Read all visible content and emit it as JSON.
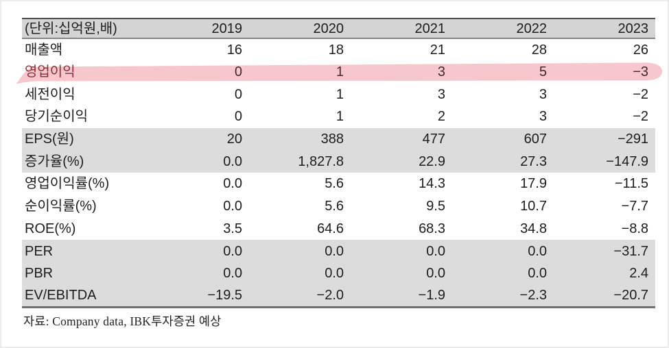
{
  "page": {
    "footer": "자료: Company data, IBK투자증권 예상"
  },
  "table": {
    "unit_label": "(단위:십억원,배)",
    "columns": [
      "2019",
      "2020",
      "2021",
      "2022",
      "2023"
    ],
    "rows": [
      {
        "label": "매출액",
        "values": [
          "16",
          "18",
          "21",
          "28",
          "26"
        ],
        "shaded": false,
        "highlighted": false
      },
      {
        "label": "영업이익",
        "values": [
          "0",
          "1",
          "3",
          "5",
          "−3"
        ],
        "shaded": false,
        "highlighted": true
      },
      {
        "label": "세전이익",
        "values": [
          "0",
          "1",
          "3",
          "3",
          "−2"
        ],
        "shaded": false,
        "highlighted": false
      },
      {
        "label": "당기순이익",
        "values": [
          "0",
          "1",
          "2",
          "3",
          "−2"
        ],
        "shaded": false,
        "highlighted": false
      },
      {
        "label": "EPS(원)",
        "values": [
          "20",
          "388",
          "477",
          "607",
          "−291"
        ],
        "shaded": true,
        "highlighted": false
      },
      {
        "label": "증가율(%)",
        "values": [
          "0.0",
          "1,827.8",
          "22.9",
          "27.3",
          "−147.9"
        ],
        "shaded": true,
        "highlighted": false
      },
      {
        "label": "영업이익률(%)",
        "values": [
          "0.0",
          "5.6",
          "14.3",
          "17.9",
          "−11.5"
        ],
        "shaded": false,
        "highlighted": false
      },
      {
        "label": "순이익률(%)",
        "values": [
          "0.0",
          "5.6",
          "9.5",
          "10.7",
          "−7.7"
        ],
        "shaded": false,
        "highlighted": false
      },
      {
        "label": "ROE(%)",
        "values": [
          "3.5",
          "64.6",
          "68.3",
          "34.8",
          "−8.8"
        ],
        "shaded": false,
        "highlighted": false
      },
      {
        "label": "PER",
        "values": [
          "0.0",
          "0.0",
          "0.0",
          "0.0",
          "−31.7"
        ],
        "shaded": true,
        "highlighted": false
      },
      {
        "label": "PBR",
        "values": [
          "0.0",
          "0.0",
          "0.0",
          "0.0",
          "2.4"
        ],
        "shaded": true,
        "highlighted": false
      },
      {
        "label": "EV/EBITDA",
        "values": [
          "−19.5",
          "−2.0",
          "−1.9",
          "−2.3",
          "−20.7"
        ],
        "shaded": true,
        "highlighted": false
      }
    ],
    "highlight_color": "#ef9aa4"
  }
}
